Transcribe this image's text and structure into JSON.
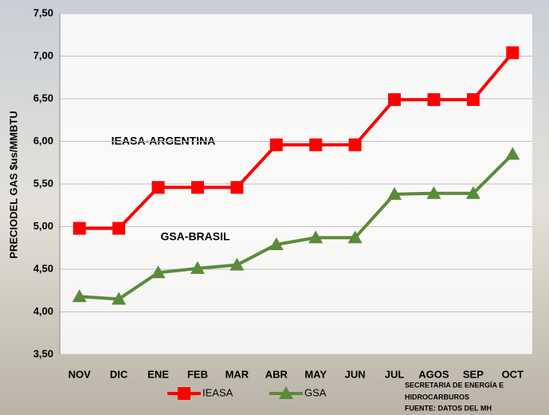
{
  "chart_data": {
    "type": "line",
    "y_label": "PRECIODEL GAS $us/MMBTU",
    "categories": [
      "NOV",
      "DIC",
      "ENE",
      "FEB",
      "MAR",
      "ABR",
      "MAY",
      "JUN",
      "JUL",
      "AGOS",
      "SEP",
      "OCT"
    ],
    "series": [
      {
        "name": "IEASA",
        "color": "#ff0000",
        "marker": "square",
        "values": [
          4.98,
          4.98,
          5.46,
          5.46,
          5.46,
          5.96,
          5.96,
          5.96,
          6.49,
          6.49,
          6.49,
          7.04
        ]
      },
      {
        "name": "GSA",
        "color": "#5b8a3a",
        "marker": "triangle",
        "values": [
          4.18,
          4.15,
          4.46,
          4.51,
          4.55,
          4.79,
          4.87,
          4.87,
          5.38,
          5.39,
          5.39,
          5.85
        ]
      }
    ],
    "ylim": [
      3.5,
      7.5
    ],
    "yticks": [
      {
        "value": 3.5,
        "label": "3,50"
      },
      {
        "value": 4,
        "label": "4,00"
      },
      {
        "value": 4.5,
        "label": "4,50"
      },
      {
        "value": 5,
        "label": "5,00"
      },
      {
        "value": 5.5,
        "label": "5,50"
      },
      {
        "value": 6,
        "label": "6,00"
      },
      {
        "value": 6.5,
        "label": "6,50"
      },
      {
        "value": 7,
        "label": "7,00"
      },
      {
        "value": 7.5,
        "label": "7,50"
      }
    ],
    "grid": true,
    "annotations": [
      "IEASA-ARGENTINA",
      "GSA-BRASIL"
    ],
    "source": [
      "SECRETARIA DE ENERGÍA E",
      "HIDROCARBUROS",
      "FUENTE: DATOS DEL MH"
    ]
  }
}
